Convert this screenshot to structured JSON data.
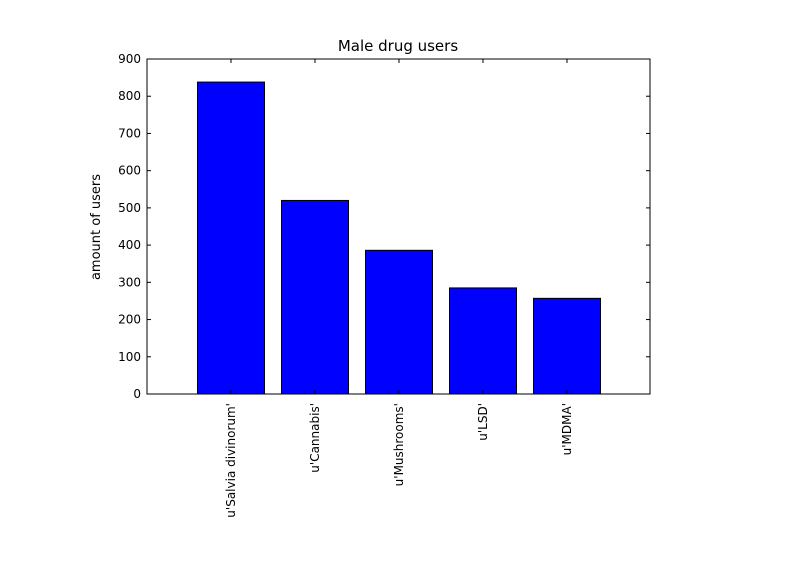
{
  "chart_data": {
    "type": "bar",
    "title": "Male drug users",
    "xlabel": "",
    "ylabel": "amount of users",
    "categories": [
      "u'Salvia divinorum'",
      "u'Cannabis'",
      "u'Mushrooms'",
      "u'LSD'",
      "u'MDMA'"
    ],
    "values": [
      838,
      520,
      386,
      285,
      257
    ],
    "ylim": [
      0,
      900
    ],
    "yticks": [
      0,
      100,
      200,
      300,
      400,
      500,
      600,
      700,
      800,
      900
    ],
    "ytick_labels": [
      "0",
      "100",
      "200",
      "300",
      "400",
      "500",
      "600",
      "700",
      "800",
      "900"
    ],
    "grid": false,
    "bar_color": "#0000ff",
    "edge_color": "#000000"
  }
}
